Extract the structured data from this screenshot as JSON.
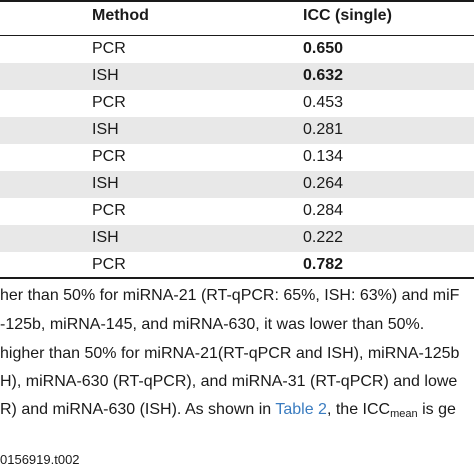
{
  "table": {
    "headers": {
      "method": "Method",
      "icc": "ICC (single)"
    },
    "rows": [
      {
        "method": "PCR",
        "icc": "0.650",
        "bold": true,
        "shaded": false
      },
      {
        "method": "ISH",
        "icc": "0.632",
        "bold": true,
        "shaded": true
      },
      {
        "method": "PCR",
        "icc": "0.453",
        "bold": false,
        "shaded": false
      },
      {
        "method": "ISH",
        "icc": "0.281",
        "bold": false,
        "shaded": true
      },
      {
        "method": "PCR",
        "icc": "0.134",
        "bold": false,
        "shaded": false
      },
      {
        "method": "ISH",
        "icc": "0.264",
        "bold": false,
        "shaded": true
      },
      {
        "method": "PCR",
        "icc": "0.284",
        "bold": false,
        "shaded": false
      },
      {
        "method": "ISH",
        "icc": "0.222",
        "bold": false,
        "shaded": true
      },
      {
        "method": "PCR",
        "icc": "0.782",
        "bold": true,
        "shaded": false
      }
    ]
  },
  "notes": {
    "line1": "her than 50% for miRNA-21 (RT-qPCR: 65%, ISH: 63%) and miF",
    "line2": "-125b, miRNA-145, and miRNA-630, it was lower than 50%.",
    "line3": "higher than 50% for miRNA-21(RT-qPCR and ISH), miRNA-125b",
    "line4": "H), miRNA-630 (RT-qPCR), and miRNA-31 (RT-qPCR) and lowe",
    "line5_pre": "R) and miRNA-630 (ISH). As shown in ",
    "line5_link": "Table 2",
    "line5_mid": ", the ICC",
    "line5_sub": "mean",
    "line5_post": " is ge"
  },
  "doi": "0156919.t002"
}
